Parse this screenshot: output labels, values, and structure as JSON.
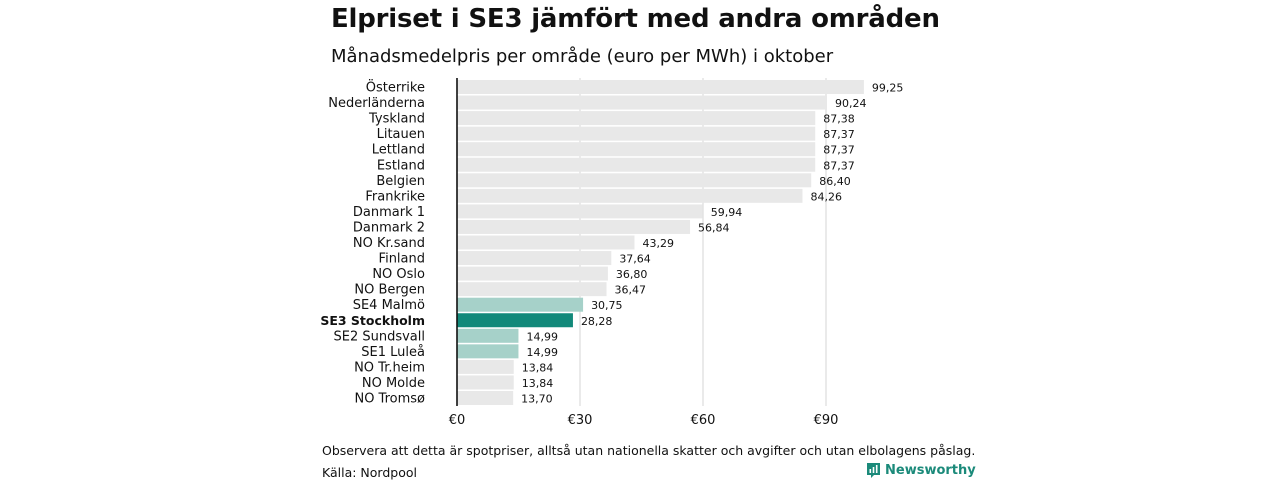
{
  "title": "Elpriset i SE3 jämfört med andra områden",
  "subtitle": "Månadsmedelpris per område (euro per MWh) i oktober",
  "note": "Observera att detta är spotpriser, alltså utan nationella skatter och avgifter och utan elbolagens påslag.",
  "source": "Källa: Nordpool",
  "brand": "Newsworthy",
  "colors": {
    "bar_default": "#e8e8e8",
    "bar_se_other": "#a6d1c9",
    "bar_highlight": "#12897a",
    "axis": "#111111",
    "grid": "#d6d6d6",
    "brand": "#1b8a7a"
  },
  "chart_data": {
    "type": "bar",
    "orientation": "horizontal",
    "categories": [
      "Österrike",
      "Nederländerna",
      "Tyskland",
      "Litauen",
      "Lettland",
      "Estland",
      "Belgien",
      "Frankrike",
      "Danmark 1",
      "Danmark 2",
      "NO Kr.sand",
      "Finland",
      "NO Oslo",
      "NO Bergen",
      "SE4 Malmö",
      "SE3 Stockholm",
      "SE2 Sundsvall",
      "SE1 Luleå",
      "NO Tr.heim",
      "NO Molde",
      "NO Tromsø"
    ],
    "values": [
      99.25,
      90.24,
      87.38,
      87.37,
      87.37,
      87.37,
      86.4,
      84.26,
      59.94,
      56.84,
      43.29,
      37.64,
      36.8,
      36.47,
      30.75,
      28.28,
      14.99,
      14.99,
      13.84,
      13.84,
      13.7
    ],
    "value_labels": [
      "99,25",
      "90,24",
      "87,38",
      "87,37",
      "87,37",
      "87,37",
      "86,40",
      "84,26",
      "59,94",
      "56,84",
      "43,29",
      "37,64",
      "36,80",
      "36,47",
      "30,75",
      "28,28",
      "14,99",
      "14,99",
      "13,84",
      "13,84",
      "13,70"
    ],
    "highlight": "SE3 Stockholm",
    "se_areas": [
      "SE4 Malmö",
      "SE2 Sundsvall",
      "SE1 Luleå"
    ],
    "xlim": [
      0,
      100
    ],
    "xticks": [
      0,
      30,
      60,
      90
    ],
    "xtick_labels": [
      "€0",
      "€30",
      "€60",
      "€90"
    ],
    "grid": true,
    "legend": "none"
  }
}
